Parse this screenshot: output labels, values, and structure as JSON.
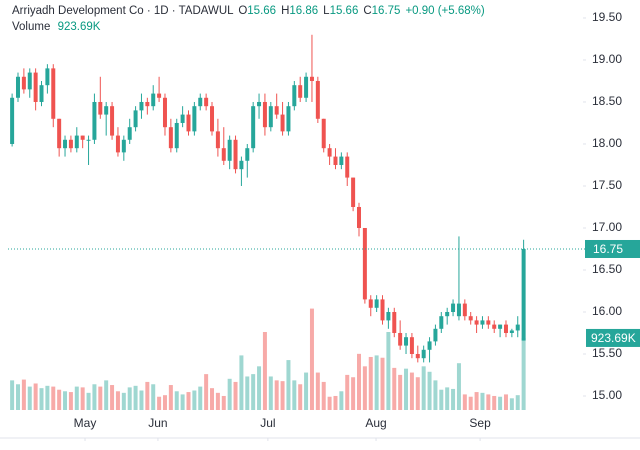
{
  "chart_data": {
    "type": "candlestick",
    "title": "Arriyadh Development Co · 1D · TADAWUL",
    "header": {
      "open_label": "O",
      "high_label": "H",
      "low_label": "L",
      "close_label": "C",
      "change": "+0.90 (+5.68%)"
    },
    "up_color": "#26a69a",
    "down_color": "#ef5350",
    "up_volume_color": "#9fd7d1",
    "down_volume_color": "#f7aaa8",
    "ohlc": [
      [
        18.0,
        18.6,
        17.97,
        18.55
      ],
      [
        18.55,
        18.85,
        18.5,
        18.8
      ],
      [
        18.8,
        18.9,
        18.6,
        18.65
      ],
      [
        18.65,
        18.9,
        18.55,
        18.85
      ],
      [
        18.85,
        18.9,
        18.4,
        18.5
      ],
      [
        18.5,
        18.75,
        18.45,
        18.7
      ],
      [
        18.7,
        18.95,
        18.6,
        18.9
      ],
      [
        18.9,
        18.95,
        18.2,
        18.3
      ],
      [
        18.3,
        18.3,
        17.85,
        17.95
      ],
      [
        17.95,
        18.1,
        17.85,
        18.05
      ],
      [
        18.05,
        18.1,
        17.9,
        17.95
      ],
      [
        17.95,
        18.2,
        17.9,
        18.1
      ],
      [
        18.1,
        18.1,
        17.95,
        18.05
      ],
      [
        18.05,
        18.1,
        17.75,
        18.05
      ],
      [
        18.05,
        18.6,
        18.0,
        18.5
      ],
      [
        18.5,
        18.8,
        18.3,
        18.35
      ],
      [
        18.35,
        18.5,
        18.1,
        18.45
      ],
      [
        18.45,
        18.5,
        18.05,
        18.1
      ],
      [
        18.1,
        18.2,
        17.85,
        17.9
      ],
      [
        17.9,
        18.1,
        17.8,
        18.05
      ],
      [
        18.05,
        18.3,
        18.0,
        18.2
      ],
      [
        18.2,
        18.45,
        18.15,
        18.4
      ],
      [
        18.4,
        18.6,
        18.3,
        18.5
      ],
      [
        18.5,
        18.55,
        18.35,
        18.45
      ],
      [
        18.45,
        18.7,
        18.4,
        18.6
      ],
      [
        18.6,
        18.8,
        18.5,
        18.55
      ],
      [
        18.55,
        18.6,
        18.1,
        18.2
      ],
      [
        18.2,
        18.3,
        17.9,
        17.95
      ],
      [
        17.95,
        18.3,
        17.9,
        18.25
      ],
      [
        18.25,
        18.45,
        18.2,
        18.35
      ],
      [
        18.35,
        18.4,
        18.1,
        18.15
      ],
      [
        18.15,
        18.5,
        18.1,
        18.45
      ],
      [
        18.45,
        18.6,
        18.4,
        18.55
      ],
      [
        18.55,
        18.6,
        18.4,
        18.45
      ],
      [
        18.45,
        18.5,
        18.1,
        18.15
      ],
      [
        18.15,
        18.3,
        17.85,
        17.95
      ],
      [
        17.95,
        18.2,
        17.75,
        17.8
      ],
      [
        17.8,
        18.1,
        17.7,
        18.05
      ],
      [
        18.05,
        18.1,
        17.65,
        17.7
      ],
      [
        17.7,
        17.85,
        17.5,
        17.8
      ],
      [
        17.8,
        18.0,
        17.6,
        17.95
      ],
      [
        17.95,
        18.5,
        17.9,
        18.45
      ],
      [
        18.45,
        18.6,
        18.3,
        18.5
      ],
      [
        18.5,
        18.6,
        18.1,
        18.2
      ],
      [
        18.2,
        18.5,
        18.15,
        18.45
      ],
      [
        18.45,
        18.6,
        18.3,
        18.35
      ],
      [
        18.35,
        18.5,
        18.1,
        18.15
      ],
      [
        18.15,
        18.5,
        18.1,
        18.45
      ],
      [
        18.45,
        18.75,
        18.4,
        18.7
      ],
      [
        18.7,
        18.8,
        18.5,
        18.55
      ],
      [
        18.55,
        18.85,
        18.5,
        18.8
      ],
      [
        18.8,
        19.3,
        18.5,
        18.75
      ],
      [
        18.75,
        18.8,
        18.25,
        18.3
      ],
      [
        18.3,
        18.3,
        17.9,
        17.95
      ],
      [
        17.95,
        18.0,
        17.75,
        17.85
      ],
      [
        17.85,
        17.95,
        17.7,
        17.75
      ],
      [
        17.75,
        17.9,
        17.7,
        17.85
      ],
      [
        17.85,
        17.9,
        17.5,
        17.6
      ],
      [
        17.6,
        17.6,
        17.2,
        17.25
      ],
      [
        17.25,
        17.3,
        16.9,
        17.0
      ],
      [
        17.0,
        17.0,
        16.1,
        16.15
      ],
      [
        16.15,
        16.2,
        15.95,
        16.05
      ],
      [
        16.05,
        16.2,
        16.0,
        16.15
      ],
      [
        16.15,
        16.2,
        15.85,
        15.9
      ],
      [
        15.9,
        16.05,
        15.8,
        16.0
      ],
      [
        16.0,
        16.05,
        15.7,
        15.75
      ],
      [
        15.75,
        15.9,
        15.55,
        15.6
      ],
      [
        15.6,
        15.75,
        15.5,
        15.7
      ],
      [
        15.7,
        15.75,
        15.45,
        15.5
      ],
      [
        15.5,
        15.6,
        15.4,
        15.45
      ],
      [
        15.45,
        15.6,
        15.4,
        15.55
      ],
      [
        15.55,
        15.7,
        15.4,
        15.65
      ],
      [
        15.65,
        15.85,
        15.6,
        15.8
      ],
      [
        15.8,
        16.0,
        15.75,
        15.95
      ],
      [
        15.95,
        16.05,
        15.85,
        16.0
      ],
      [
        16.0,
        16.15,
        15.95,
        16.1
      ],
      [
        15.95,
        16.9,
        15.9,
        16.1
      ],
      [
        16.1,
        16.15,
        15.9,
        15.95
      ],
      [
        15.95,
        16.0,
        15.85,
        15.9
      ],
      [
        15.9,
        15.95,
        15.75,
        15.85
      ],
      [
        15.85,
        15.95,
        15.8,
        15.9
      ],
      [
        15.9,
        15.95,
        15.8,
        15.85
      ],
      [
        15.85,
        15.9,
        15.75,
        15.8
      ],
      [
        15.8,
        15.85,
        15.7,
        15.85
      ],
      [
        15.85,
        15.9,
        15.7,
        15.75
      ],
      [
        15.75,
        15.8,
        15.7,
        15.78
      ],
      [
        15.78,
        15.95,
        15.7,
        15.85
      ],
      [
        15.66,
        16.86,
        15.66,
        16.75
      ]
    ],
    "volume": {
      "name": "Volume",
      "values": [
        380,
        330,
        390,
        300,
        340,
        280,
        310,
        300,
        260,
        240,
        230,
        300,
        290,
        220,
        330,
        300,
        380,
        320,
        240,
        220,
        290,
        310,
        250,
        360,
        330,
        170,
        190,
        320,
        240,
        200,
        230,
        250,
        300,
        460,
        280,
        220,
        180,
        400,
        360,
        700,
        430,
        460,
        560,
        1000,
        430,
        380,
        370,
        640,
        380,
        330,
        480,
        1300,
        480,
        360,
        170,
        180,
        240,
        450,
        420,
        720,
        560,
        680,
        700,
        670,
        1000,
        540,
        450,
        530,
        480,
        420,
        560,
        490,
        380,
        260,
        290,
        270,
        600,
        200,
        170,
        230,
        220,
        200,
        180,
        170,
        200,
        150,
        190,
        923.69
      ],
      "value_labels": [
        null,
        null,
        null,
        null,
        null,
        null,
        null,
        null,
        null,
        null,
        null,
        null,
        null,
        null,
        null,
        null,
        null,
        null,
        null,
        null,
        null,
        null,
        null,
        null,
        null,
        null,
        null,
        null,
        null,
        null,
        null,
        null,
        null,
        null,
        null,
        null,
        null,
        null,
        null,
        null,
        null,
        null,
        null,
        null,
        null,
        null,
        null,
        null,
        null,
        null,
        null,
        null,
        null,
        null,
        null,
        null,
        null,
        null,
        null,
        null,
        null,
        null,
        null,
        null,
        null,
        null,
        null,
        null,
        null,
        null,
        null,
        null,
        null,
        null,
        null,
        null,
        null,
        null,
        null,
        null,
        null,
        null,
        null,
        null,
        null,
        null,
        null,
        "923.69K"
      ]
    },
    "ylim": [
      14.5,
      19.714
    ],
    "yticks": [
      {
        "value": 15,
        "label": "15.00"
      },
      {
        "value": 15.5,
        "label": "15.50"
      },
      {
        "value": 16,
        "label": "16.00"
      },
      {
        "value": 16.5,
        "label": "16.50"
      },
      {
        "value": 17,
        "label": "17.00"
      },
      {
        "value": 17.5,
        "label": "17.50"
      },
      {
        "value": 18,
        "label": "18.00"
      },
      {
        "value": 18.5,
        "label": "18.50"
      },
      {
        "value": 19,
        "label": "19.00"
      },
      {
        "value": 19.5,
        "label": "19.50"
      }
    ],
    "xlim": [
      -0.7,
      97.1
    ],
    "xticks": [
      {
        "value": 12.4,
        "label": "May"
      },
      {
        "value": 24.8,
        "label": "Jun"
      },
      {
        "value": 43.5,
        "label": "Jul"
      },
      {
        "value": 61.9,
        "label": "Aug"
      },
      {
        "value": 79.6,
        "label": "Sep"
      }
    ]
  }
}
